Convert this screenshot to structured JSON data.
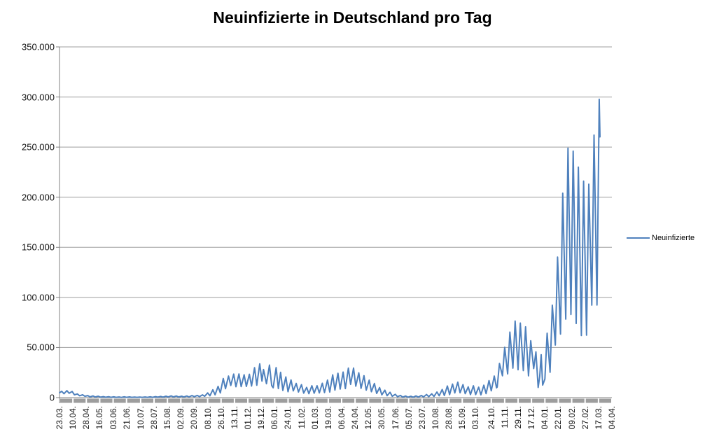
{
  "chart_data": {
    "type": "line",
    "title": "Neuinfizierte in Deutschland pro Tag",
    "xlabel": "",
    "ylabel": "",
    "legend": {
      "label": "Neuinfizierte",
      "position": "right"
    },
    "series_name": "Neuinfizierte",
    "line_color": "#4F81BD",
    "gridline_color": "#9d9d9d",
    "axis_color": "#808080",
    "baseline_bar_color": "#9d9d9d",
    "grid": true,
    "ylim": [
      0,
      350000
    ],
    "ytick_step": 50000,
    "ytick_labels": [
      "0",
      "50.000",
      "100.000",
      "150.000",
      "200.000",
      "250.000",
      "300.000",
      "350.000"
    ],
    "x_axis_total_days": 742,
    "xtick_labels": [
      "23.03.",
      "10.04.",
      "28.04.",
      "16.05.",
      "03.06.",
      "21.06.",
      "10.07.",
      "28.07.",
      "15.08.",
      "02.09.",
      "20.09.",
      "08.10.",
      "26.10.",
      "13.11.",
      "01.12.",
      "19.12.",
      "06.01.",
      "24.01.",
      "11.02.",
      "01.03.",
      "19.03.",
      "06.04.",
      "24.04.",
      "12.05.",
      "30.05.",
      "17.06.",
      "05.07.",
      "23.07.",
      "10.08.",
      "28.08.",
      "15.09.",
      "03.10.",
      "24.10.",
      "11.11.",
      "29.11.",
      "17.12.",
      "04.01.",
      "22.01.",
      "09.02.",
      "27.02.",
      "17.03.",
      "04.04."
    ],
    "xtick_days": [
      0,
      18,
      36,
      54,
      72,
      90,
      109,
      127,
      145,
      163,
      181,
      199,
      217,
      235,
      253,
      271,
      289,
      307,
      325,
      343,
      361,
      379,
      397,
      415,
      433,
      451,
      469,
      487,
      505,
      523,
      541,
      559,
      580,
      598,
      616,
      634,
      652,
      670,
      688,
      706,
      724,
      742
    ],
    "points": [
      [
        0,
        4800
      ],
      [
        3,
        6300
      ],
      [
        6,
        3900
      ],
      [
        10,
        6900
      ],
      [
        13,
        4300
      ],
      [
        17,
        6100
      ],
      [
        20,
        2800
      ],
      [
        24,
        3600
      ],
      [
        27,
        1800
      ],
      [
        31,
        2800
      ],
      [
        34,
        1300
      ],
      [
        38,
        2000
      ],
      [
        41,
        700
      ],
      [
        45,
        1700
      ],
      [
        48,
        600
      ],
      [
        52,
        1400
      ],
      [
        55,
        500
      ],
      [
        59,
        1000
      ],
      [
        62,
        350
      ],
      [
        66,
        900
      ],
      [
        69,
        300
      ],
      [
        73,
        800
      ],
      [
        76,
        250
      ],
      [
        80,
        600
      ],
      [
        83,
        200
      ],
      [
        87,
        800
      ],
      [
        90,
        300
      ],
      [
        94,
        700
      ],
      [
        97,
        300
      ],
      [
        101,
        500
      ],
      [
        104,
        250
      ],
      [
        108,
        500
      ],
      [
        111,
        250
      ],
      [
        115,
        600
      ],
      [
        118,
        250
      ],
      [
        122,
        800
      ],
      [
        125,
        300
      ],
      [
        129,
        1000
      ],
      [
        132,
        400
      ],
      [
        136,
        1200
      ],
      [
        139,
        500
      ],
      [
        143,
        1400
      ],
      [
        146,
        600
      ],
      [
        150,
        1700
      ],
      [
        153,
        700
      ],
      [
        157,
        1600
      ],
      [
        160,
        600
      ],
      [
        164,
        1400
      ],
      [
        167,
        600
      ],
      [
        171,
        1600
      ],
      [
        174,
        700
      ],
      [
        178,
        2000
      ],
      [
        181,
        900
      ],
      [
        185,
        2200
      ],
      [
        188,
        1000
      ],
      [
        192,
        2700
      ],
      [
        195,
        1300
      ],
      [
        199,
        4700
      ],
      [
        202,
        1800
      ],
      [
        206,
        7800
      ],
      [
        209,
        2800
      ],
      [
        213,
        11200
      ],
      [
        216,
        4700
      ],
      [
        220,
        19100
      ],
      [
        223,
        8900
      ],
      [
        227,
        21500
      ],
      [
        230,
        12100
      ],
      [
        234,
        23500
      ],
      [
        237,
        10800
      ],
      [
        241,
        23600
      ],
      [
        244,
        11000
      ],
      [
        248,
        22800
      ],
      [
        251,
        11200
      ],
      [
        255,
        23300
      ],
      [
        258,
        11500
      ],
      [
        262,
        29900
      ],
      [
        265,
        12300
      ],
      [
        269,
        33700
      ],
      [
        272,
        16400
      ],
      [
        274,
        28000
      ],
      [
        278,
        13800
      ],
      [
        282,
        32500
      ],
      [
        285,
        12000
      ],
      [
        287,
        9800
      ],
      [
        291,
        30000
      ],
      [
        294,
        9000
      ],
      [
        297,
        25200
      ],
      [
        300,
        7100
      ],
      [
        304,
        20600
      ],
      [
        307,
        5900
      ],
      [
        311,
        17600
      ],
      [
        314,
        6700
      ],
      [
        318,
        14200
      ],
      [
        321,
        5600
      ],
      [
        325,
        12900
      ],
      [
        328,
        4500
      ],
      [
        332,
        10200
      ],
      [
        335,
        3900
      ],
      [
        339,
        11900
      ],
      [
        342,
        4400
      ],
      [
        346,
        11900
      ],
      [
        349,
        4700
      ],
      [
        353,
        14300
      ],
      [
        356,
        5000
      ],
      [
        360,
        17500
      ],
      [
        363,
        5500
      ],
      [
        367,
        22700
      ],
      [
        370,
        7500
      ],
      [
        374,
        24300
      ],
      [
        377,
        8500
      ],
      [
        381,
        25500
      ],
      [
        384,
        9000
      ],
      [
        388,
        29400
      ],
      [
        391,
        13200
      ],
      [
        395,
        29500
      ],
      [
        398,
        11400
      ],
      [
        402,
        24700
      ],
      [
        405,
        9200
      ],
      [
        409,
        21900
      ],
      [
        412,
        7500
      ],
      [
        416,
        17400
      ],
      [
        419,
        5900
      ],
      [
        423,
        14100
      ],
      [
        426,
        4200
      ],
      [
        430,
        10000
      ],
      [
        433,
        2700
      ],
      [
        437,
        7400
      ],
      [
        440,
        1900
      ],
      [
        444,
        5300
      ],
      [
        447,
        1300
      ],
      [
        451,
        3300
      ],
      [
        454,
        900
      ],
      [
        458,
        2200
      ],
      [
        461,
        500
      ],
      [
        465,
        1600
      ],
      [
        468,
        400
      ],
      [
        472,
        1300
      ],
      [
        475,
        400
      ],
      [
        479,
        1700
      ],
      [
        482,
        500
      ],
      [
        486,
        2100
      ],
      [
        489,
        700
      ],
      [
        493,
        3100
      ],
      [
        496,
        1000
      ],
      [
        500,
        3800
      ],
      [
        503,
        1200
      ],
      [
        507,
        5600
      ],
      [
        510,
        1800
      ],
      [
        514,
        8100
      ],
      [
        517,
        2100
      ],
      [
        521,
        11600
      ],
      [
        524,
        3000
      ],
      [
        528,
        13500
      ],
      [
        531,
        4700
      ],
      [
        535,
        15400
      ],
      [
        538,
        4800
      ],
      [
        542,
        12900
      ],
      [
        545,
        3900
      ],
      [
        549,
        10700
      ],
      [
        552,
        3000
      ],
      [
        556,
        11800
      ],
      [
        559,
        3000
      ],
      [
        563,
        10400
      ],
      [
        566,
        2700
      ],
      [
        570,
        12400
      ],
      [
        573,
        4000
      ],
      [
        577,
        17000
      ],
      [
        580,
        6800
      ],
      [
        584,
        21500
      ],
      [
        587,
        9700
      ],
      [
        588,
        10500
      ],
      [
        591,
        34000
      ],
      [
        595,
        21800
      ],
      [
        598,
        50200
      ],
      [
        602,
        23600
      ],
      [
        605,
        65400
      ],
      [
        609,
        29400
      ],
      [
        612,
        76400
      ],
      [
        616,
        27800
      ],
      [
        619,
        74400
      ],
      [
        623,
        27000
      ],
      [
        626,
        70600
      ],
      [
        630,
        21700
      ],
      [
        633,
        56700
      ],
      [
        637,
        29000
      ],
      [
        640,
        45700
      ],
      [
        643,
        10100
      ],
      [
        645,
        21000
      ],
      [
        647,
        42800
      ],
      [
        649,
        12500
      ],
      [
        652,
        18500
      ],
      [
        655,
        64300
      ],
      [
        659,
        25300
      ],
      [
        662,
        92200
      ],
      [
        666,
        52500
      ],
      [
        669,
        140200
      ],
      [
        673,
        63400
      ],
      [
        676,
        204000
      ],
      [
        680,
        78300
      ],
      [
        683,
        249000
      ],
      [
        687,
        83000
      ],
      [
        690,
        246000
      ],
      [
        694,
        74000
      ],
      [
        697,
        230000
      ],
      [
        701,
        62000
      ],
      [
        704,
        216000
      ],
      [
        708,
        62300
      ],
      [
        711,
        213000
      ],
      [
        715,
        92300
      ],
      [
        718,
        262000
      ],
      [
        722,
        92400
      ],
      [
        725,
        297800
      ],
      [
        726,
        260200
      ]
    ]
  }
}
